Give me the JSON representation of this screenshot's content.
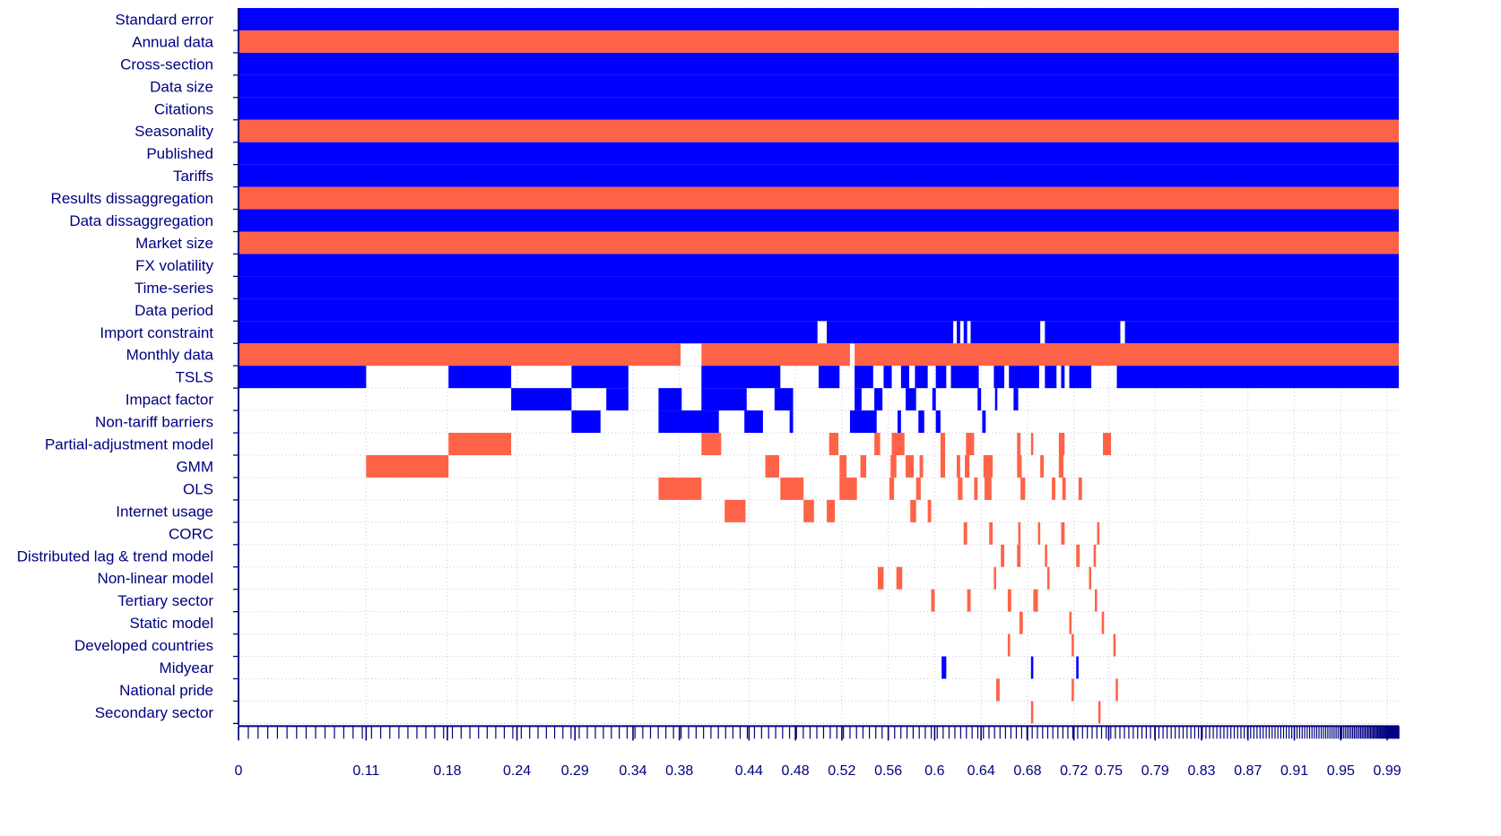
{
  "chart_data": {
    "type": "heatmap",
    "title": "",
    "xlabel": "",
    "ylabel": "",
    "x_tick_labels": [
      "0",
      "0.11",
      "0.18",
      "0.24",
      "0.29",
      "0.34",
      "0.38",
      "0.44",
      "0.48",
      "0.52",
      "0.56",
      "0.6",
      "0.64",
      "0.68",
      "0.72",
      "0.75",
      "0.79",
      "0.83",
      "0.87",
      "0.91",
      "0.95",
      "0.99"
    ],
    "x_tick_values": [
      0,
      0.11,
      0.18,
      0.24,
      0.29,
      0.34,
      0.38,
      0.44,
      0.48,
      0.52,
      0.56,
      0.6,
      0.64,
      0.68,
      0.72,
      0.75,
      0.79,
      0.83,
      0.87,
      0.91,
      0.95,
      0.99
    ],
    "xlim": [
      0,
      1
    ],
    "grid": true,
    "legend": "none",
    "colors": {
      "positive": "#0000ff",
      "negative": "#ff6347",
      "axis": "#000080",
      "grid": "#c8c8e0"
    },
    "series": [
      {
        "name": "Standard error",
        "sign": "positive",
        "segments": [
          [
            0,
            1
          ]
        ]
      },
      {
        "name": "Annual data",
        "sign": "negative",
        "segments": [
          [
            0,
            1
          ]
        ]
      },
      {
        "name": "Cross-section",
        "sign": "positive",
        "segments": [
          [
            0,
            1
          ]
        ]
      },
      {
        "name": "Data size",
        "sign": "positive",
        "segments": [
          [
            0,
            1
          ]
        ]
      },
      {
        "name": "Citations",
        "sign": "positive",
        "segments": [
          [
            0,
            1
          ]
        ]
      },
      {
        "name": "Seasonality",
        "sign": "negative",
        "segments": [
          [
            0,
            1
          ]
        ]
      },
      {
        "name": "Published",
        "sign": "positive",
        "segments": [
          [
            0,
            1
          ]
        ]
      },
      {
        "name": "Tariffs",
        "sign": "positive",
        "segments": [
          [
            0,
            1
          ]
        ]
      },
      {
        "name": "Results dissaggregation",
        "sign": "negative",
        "segments": [
          [
            0,
            1
          ]
        ]
      },
      {
        "name": "Data dissaggregation",
        "sign": "positive",
        "segments": [
          [
            0,
            1
          ]
        ]
      },
      {
        "name": "Market size",
        "sign": "negative",
        "segments": [
          [
            0,
            1
          ]
        ]
      },
      {
        "name": "FX volatility",
        "sign": "positive",
        "segments": [
          [
            0,
            1
          ]
        ]
      },
      {
        "name": "Time-series",
        "sign": "positive",
        "segments": [
          [
            0,
            1
          ]
        ]
      },
      {
        "name": "Data period",
        "sign": "positive",
        "segments": [
          [
            0,
            1
          ]
        ]
      },
      {
        "name": "Import constraint",
        "sign": "positive",
        "segments": [
          [
            0,
            0.499
          ],
          [
            0.507,
            0.616
          ],
          [
            0.619,
            0.622
          ],
          [
            0.625,
            0.628
          ],
          [
            0.631,
            0.691
          ],
          [
            0.695,
            0.76
          ],
          [
            0.764,
            1
          ]
        ]
      },
      {
        "name": "Monthly data",
        "sign": "negative",
        "segments": [
          [
            0,
            0.381
          ],
          [
            0.399,
            0.527
          ],
          [
            0.531,
            1
          ]
        ]
      },
      {
        "name": "TSLS",
        "sign": "positive",
        "segments": [
          [
            0,
            0.11
          ],
          [
            0.181,
            0.235
          ],
          [
            0.287,
            0.336
          ],
          [
            0.399,
            0.467
          ],
          [
            0.5,
            0.518
          ],
          [
            0.531,
            0.547
          ],
          [
            0.556,
            0.563
          ],
          [
            0.571,
            0.578
          ],
          [
            0.583,
            0.594
          ],
          [
            0.601,
            0.61
          ],
          [
            0.614,
            0.638
          ],
          [
            0.651,
            0.66
          ],
          [
            0.664,
            0.69
          ],
          [
            0.695,
            0.705
          ],
          [
            0.709,
            0.712
          ],
          [
            0.716,
            0.735
          ],
          [
            0.757,
            1
          ]
        ]
      },
      {
        "name": "Impact factor",
        "sign": "positive",
        "segments": [
          [
            0.235,
            0.287
          ],
          [
            0.317,
            0.336
          ],
          [
            0.362,
            0.382
          ],
          [
            0.399,
            0.438
          ],
          [
            0.462,
            0.478
          ],
          [
            0.531,
            0.537
          ],
          [
            0.548,
            0.555
          ],
          [
            0.575,
            0.584
          ],
          [
            0.598,
            0.601
          ],
          [
            0.637,
            0.64
          ],
          [
            0.652,
            0.654
          ],
          [
            0.668,
            0.672
          ]
        ]
      },
      {
        "name": "Non-tariff barriers",
        "sign": "positive",
        "segments": [
          [
            0.287,
            0.312
          ],
          [
            0.362,
            0.414
          ],
          [
            0.436,
            0.452
          ],
          [
            0.475,
            0.478
          ],
          [
            0.527,
            0.55
          ],
          [
            0.568,
            0.571
          ],
          [
            0.586,
            0.591
          ],
          [
            0.601,
            0.605
          ],
          [
            0.641,
            0.644
          ]
        ]
      },
      {
        "name": "Partial-adjustment model",
        "sign": "negative",
        "segments": [
          [
            0.181,
            0.235
          ],
          [
            0.399,
            0.416
          ],
          [
            0.509,
            0.517
          ],
          [
            0.548,
            0.553
          ],
          [
            0.563,
            0.574
          ],
          [
            0.605,
            0.609
          ],
          [
            0.627,
            0.634
          ],
          [
            0.671,
            0.674
          ],
          [
            0.683,
            0.685
          ],
          [
            0.707,
            0.712
          ],
          [
            0.745,
            0.752
          ]
        ]
      },
      {
        "name": "GMM",
        "sign": "negative",
        "segments": [
          [
            0.11,
            0.181
          ],
          [
            0.454,
            0.466
          ],
          [
            0.518,
            0.524
          ],
          [
            0.536,
            0.541
          ],
          [
            0.562,
            0.567
          ],
          [
            0.575,
            0.582
          ],
          [
            0.587,
            0.59
          ],
          [
            0.605,
            0.609
          ],
          [
            0.619,
            0.622
          ],
          [
            0.626,
            0.63
          ],
          [
            0.642,
            0.65
          ],
          [
            0.671,
            0.675
          ],
          [
            0.691,
            0.694
          ],
          [
            0.707,
            0.711
          ]
        ]
      },
      {
        "name": "OLS",
        "sign": "negative",
        "segments": [
          [
            0.362,
            0.399
          ],
          [
            0.467,
            0.487
          ],
          [
            0.518,
            0.533
          ],
          [
            0.561,
            0.565
          ],
          [
            0.584,
            0.588
          ],
          [
            0.62,
            0.624
          ],
          [
            0.634,
            0.637
          ],
          [
            0.643,
            0.649
          ],
          [
            0.674,
            0.678
          ],
          [
            0.701,
            0.704
          ],
          [
            0.71,
            0.713
          ],
          [
            0.724,
            0.727
          ]
        ]
      },
      {
        "name": "Internet usage",
        "sign": "negative",
        "segments": [
          [
            0.419,
            0.437
          ],
          [
            0.487,
            0.496
          ],
          [
            0.507,
            0.514
          ],
          [
            0.579,
            0.584
          ],
          [
            0.594,
            0.597
          ]
        ]
      },
      {
        "name": "CORC",
        "sign": "negative",
        "segments": [
          [
            0.625,
            0.628
          ],
          [
            0.647,
            0.65
          ],
          [
            0.672,
            0.674
          ],
          [
            0.689,
            0.691
          ],
          [
            0.709,
            0.712
          ],
          [
            0.74,
            0.742
          ]
        ]
      },
      {
        "name": "Distributed lag & trend model",
        "sign": "negative",
        "segments": [
          [
            0.657,
            0.66
          ],
          [
            0.671,
            0.674
          ],
          [
            0.695,
            0.697
          ],
          [
            0.722,
            0.725
          ],
          [
            0.737,
            0.739
          ]
        ]
      },
      {
        "name": "Non-linear model",
        "sign": "negative",
        "segments": [
          [
            0.551,
            0.556
          ],
          [
            0.567,
            0.572
          ],
          [
            0.651,
            0.653
          ],
          [
            0.697,
            0.699
          ],
          [
            0.733,
            0.735
          ]
        ]
      },
      {
        "name": "Tertiary sector",
        "sign": "negative",
        "segments": [
          [
            0.597,
            0.6
          ],
          [
            0.628,
            0.631
          ],
          [
            0.663,
            0.666
          ],
          [
            0.685,
            0.689
          ],
          [
            0.738,
            0.74
          ]
        ]
      },
      {
        "name": "Static model",
        "sign": "negative",
        "segments": [
          [
            0.673,
            0.676
          ],
          [
            0.716,
            0.718
          ],
          [
            0.744,
            0.746
          ]
        ]
      },
      {
        "name": "Developed countries",
        "sign": "negative",
        "segments": [
          [
            0.663,
            0.665
          ],
          [
            0.718,
            0.72
          ],
          [
            0.754,
            0.756
          ]
        ]
      },
      {
        "name": "Midyear",
        "sign": "positive",
        "segments": [
          [
            0.606,
            0.61
          ],
          [
            0.683,
            0.685
          ],
          [
            0.722,
            0.724
          ]
        ]
      },
      {
        "name": "National pride",
        "sign": "negative",
        "segments": [
          [
            0.653,
            0.656
          ],
          [
            0.718,
            0.72
          ],
          [
            0.756,
            0.758
          ]
        ]
      },
      {
        "name": "Secondary sector",
        "sign": "negative",
        "segments": [
          [
            0.683,
            0.685
          ],
          [
            0.741,
            0.743
          ]
        ]
      }
    ]
  }
}
